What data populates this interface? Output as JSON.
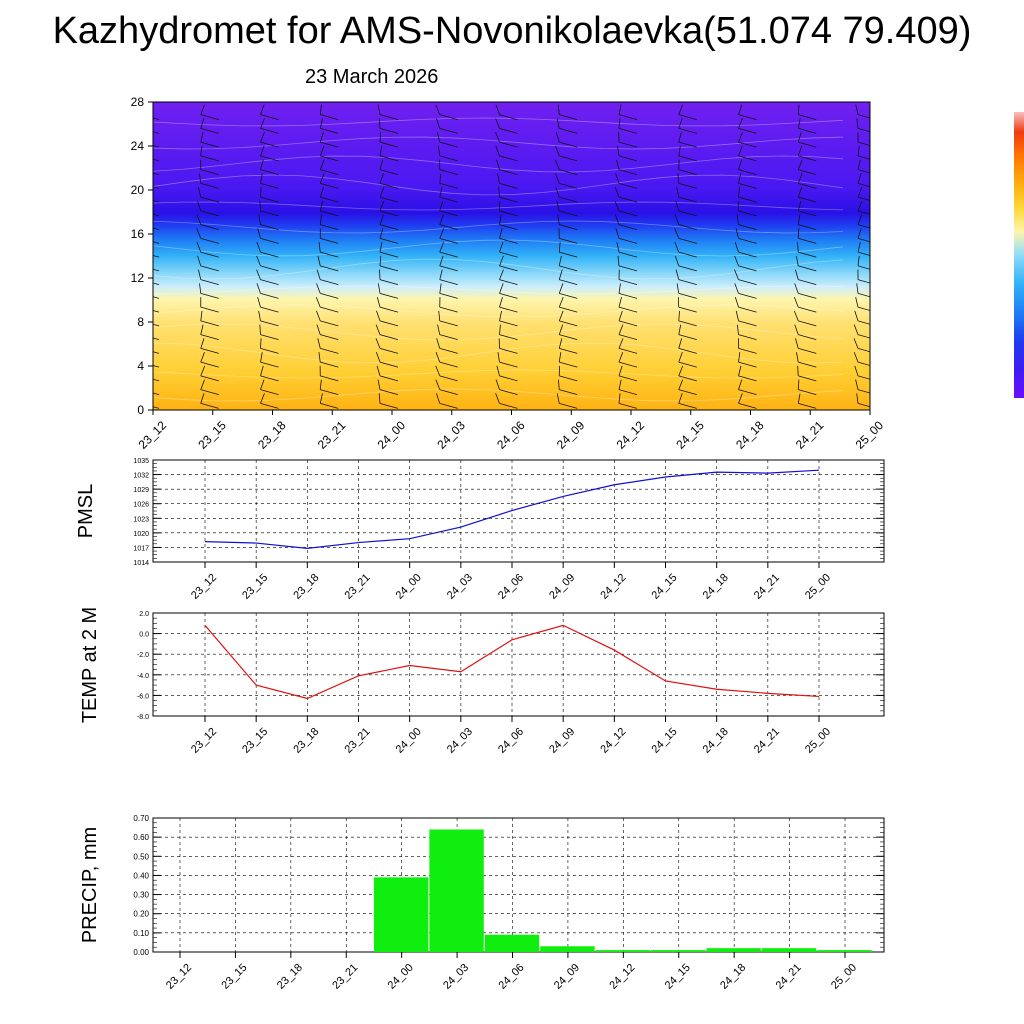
{
  "title": "Kazhydromet for AMS-Novonikolaevka(51.074 79.409)",
  "date": "23 March 2026",
  "chart_data": [
    {
      "type": "heatmap",
      "name": "vertical-cross-section",
      "x_ticks": [
        "23_12",
        "23_15",
        "23_18",
        "23_21",
        "24_00",
        "24_03",
        "24_06",
        "24_09",
        "24_12",
        "24_15",
        "24_18",
        "24_21",
        "25_00"
      ],
      "y_ticks": [
        0,
        4,
        8,
        12,
        16,
        20,
        24,
        28
      ],
      "ylim": [
        0,
        28
      ],
      "colorbar_colors": [
        "#6a0dff",
        "#3d1df2",
        "#1f3cf0",
        "#1f7ff5",
        "#31b2f7",
        "#8fdcfa",
        "#fdf5ad",
        "#ffd93b",
        "#ffb213",
        "#ff7a00",
        "#f03a10",
        "#c81616"
      ],
      "wind_barbs": true
    },
    {
      "type": "line",
      "ylabel": "PMSL",
      "x": [
        "23_12",
        "23_15",
        "23_18",
        "23_21",
        "24_00",
        "24_03",
        "24_06",
        "24_09",
        "24_12",
        "24_15",
        "24_18",
        "24_21",
        "25_00"
      ],
      "series": [
        {
          "values": [
            1018.2,
            1017.9,
            1016.8,
            1018.0,
            1018.8,
            1021.2,
            1024.6,
            1027.5,
            1029.9,
            1031.5,
            1032.5,
            1032.3,
            1032.9
          ]
        }
      ],
      "y_ticks": [
        "1014",
        "1017",
        "1020",
        "1023",
        "1026",
        "1029",
        "1032",
        "1035"
      ],
      "ylim": [
        1014,
        1035
      ],
      "color": "#1010d0",
      "grid": true
    },
    {
      "type": "line",
      "ylabel": "TEMP at 2 M",
      "x": [
        "23_12",
        "23_15",
        "23_18",
        "23_21",
        "24_00",
        "24_03",
        "24_06",
        "24_09",
        "24_12",
        "24_15",
        "24_18",
        "24_21",
        "25_00"
      ],
      "series": [
        {
          "values": [
            0.8,
            -5.0,
            -6.3,
            -4.1,
            -3.1,
            -3.7,
            -0.6,
            0.8,
            -1.6,
            -4.6,
            -5.4,
            -5.8,
            -6.1
          ]
        }
      ],
      "y_ticks": [
        "-8.0",
        "-6.0",
        "-4.0",
        "-2.0",
        "0.0",
        "2.0"
      ],
      "ylim": [
        -8,
        2
      ],
      "color": "#e01010",
      "grid": true
    },
    {
      "type": "bar",
      "ylabel": "PRECIP, mm",
      "categories": [
        "23_12",
        "23_15",
        "23_18",
        "23_21",
        "24_00",
        "24_03",
        "24_06",
        "24_09",
        "24_12",
        "24_15",
        "24_18",
        "24_21",
        "25_00"
      ],
      "values": [
        0,
        0,
        0,
        0,
        0.39,
        0.64,
        0.09,
        0.03,
        0.01,
        0.01,
        0.02,
        0.02,
        0.01
      ],
      "y_ticks": [
        "0.00",
        "0.10",
        "0.20",
        "0.30",
        "0.40",
        "0.50",
        "0.60",
        "0.70"
      ],
      "ylim": [
        0,
        0.7
      ],
      "color": "#10ee10",
      "grid": true
    }
  ]
}
